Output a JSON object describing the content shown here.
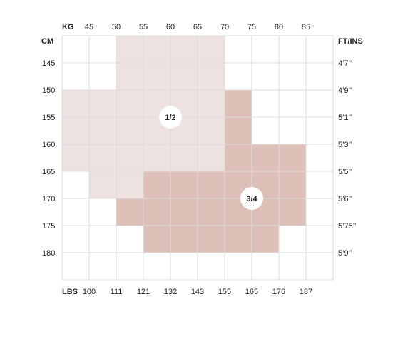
{
  "chart_data": {
    "type": "heatmap",
    "kg_header": "KG",
    "cm_header": "CM",
    "lbs_header": "LBS",
    "ftin_header": "FT/INS",
    "kg_ticks": [
      "45",
      "50",
      "55",
      "60",
      "65",
      "70",
      "75",
      "80",
      "85"
    ],
    "lbs_ticks": [
      "100",
      "111",
      "121",
      "132",
      "143",
      "155",
      "165",
      "176",
      "187"
    ],
    "cm_ticks": [
      "145",
      "150",
      "155",
      "160",
      "165",
      "170",
      "175",
      "180"
    ],
    "ftin_ticks": [
      "4’7’’",
      "4’9’’",
      "5’1’’",
      "5’3’’",
      "5’5’’",
      "5’6’’",
      "5’75’’",
      "5’9’’"
    ],
    "x_range_kg": [
      40,
      90
    ],
    "y_range_cm": [
      140,
      185
    ],
    "grid": true,
    "colors": {
      "size_1_2": "#ede2e0",
      "size_3_4": "#dfc0b8",
      "grid": "#dcdcdc"
    },
    "regions": [
      {
        "name": "1/2",
        "color": "#ede2e0",
        "label_at": {
          "kg": 60,
          "cm": 155
        },
        "cells": [
          {
            "kg": [
              50,
              70
            ],
            "cm": [
              140,
              150
            ]
          },
          {
            "kg": [
              40,
              70
            ],
            "cm": [
              150,
              165
            ]
          },
          {
            "kg": [
              45,
              55
            ],
            "cm": [
              165,
              170
            ]
          }
        ]
      },
      {
        "name": "3/4",
        "color": "#dfc0b8",
        "label_at": {
          "kg": 75,
          "cm": 170
        },
        "cells": [
          {
            "kg": [
              70,
              75
            ],
            "cm": [
              150,
              160
            ]
          },
          {
            "kg": [
              70,
              85
            ],
            "cm": [
              160,
              165
            ]
          },
          {
            "kg": [
              55,
              85
            ],
            "cm": [
              165,
              170
            ]
          },
          {
            "kg": [
              50,
              85
            ],
            "cm": [
              170,
              175
            ]
          },
          {
            "kg": [
              55,
              80
            ],
            "cm": [
              175,
              180
            ]
          }
        ]
      }
    ]
  }
}
